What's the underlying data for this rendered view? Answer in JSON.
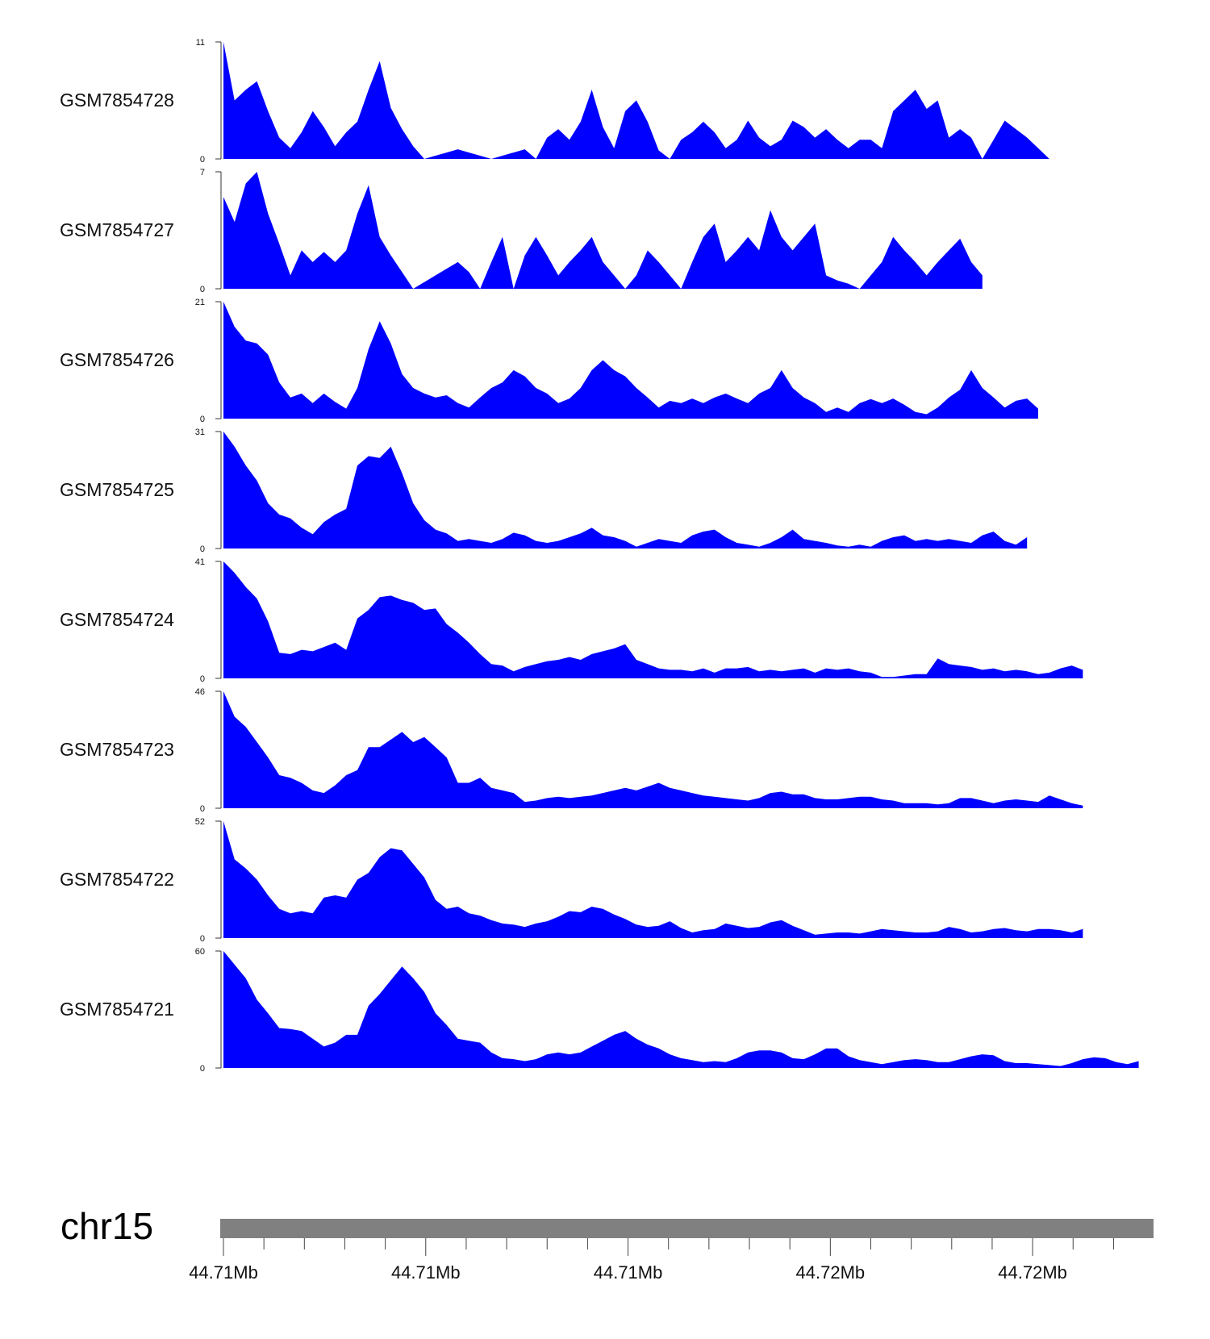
{
  "chart_data": {
    "type": "area",
    "title": "",
    "xlabel": "",
    "ylabel": "",
    "colors": {
      "fill": "#0000ff",
      "axis": "#333333",
      "ideogram": "#808080"
    },
    "chromosome": "chr15",
    "x": [
      0,
      1.2,
      2.4,
      3.6,
      4.8,
      6,
      7.2,
      8.4,
      9.6,
      10.8,
      12,
      13.2,
      14.4,
      15.6,
      16.8,
      18,
      19.2,
      20.4,
      21.6,
      22.8,
      24,
      25.2,
      26.4,
      27.6,
      28.8,
      30,
      31.2,
      32.4,
      33.6,
      34.8,
      36,
      37.2,
      38.4,
      39.6,
      40.8,
      42,
      43.2,
      44.4,
      45.6,
      46.8,
      48,
      49.2,
      50.4,
      51.6,
      52.8,
      54,
      55.2,
      56.4,
      57.6,
      58.8,
      60,
      61.2,
      62.4,
      63.6,
      64.8,
      66,
      67.2,
      68.4,
      69.6,
      70.8,
      72,
      73.2,
      74.4,
      75.6,
      76.8,
      78,
      79.2,
      80.4,
      81.6,
      82.8,
      84,
      85.2,
      86.4,
      87.6,
      88.8,
      90,
      91.2,
      92.4,
      93.6,
      94.8,
      96,
      97.2,
      98.4,
      99.6
    ],
    "xlim": [
      0,
      100
    ],
    "series": [
      {
        "name": "GSM7854728",
        "ymax": "11",
        "ymin": "0",
        "ylim": [
          0,
          11
        ],
        "values": [
          11,
          5.5,
          6.5,
          7.3,
          4.5,
          2,
          1,
          2.5,
          4.5,
          3,
          1.2,
          2.5,
          3.5,
          6.5,
          9.2,
          4.8,
          2.8,
          1.2,
          0,
          0.3,
          0.6,
          0.9,
          0.6,
          0.3,
          0,
          0.3,
          0.6,
          0.9,
          0,
          2,
          2.8,
          1.8,
          3.5,
          6.5,
          3,
          1,
          4.5,
          5.5,
          3.5,
          0.8,
          0,
          1.8,
          2.5,
          3.5,
          2.5,
          1,
          1.8,
          3.6,
          2,
          1.2,
          1.8,
          3.6,
          3,
          2,
          2.8,
          1.8,
          1,
          1.8,
          1.8,
          1,
          4.5,
          5.5,
          6.5,
          4.7,
          5.5,
          2,
          2.8,
          2,
          0,
          1.8,
          3.6,
          2.8,
          2,
          1,
          0,
          null,
          null,
          null,
          null,
          null,
          null,
          null,
          null,
          null
        ]
      },
      {
        "name": "GSM7854727",
        "ymax": "7",
        "ymin": "0",
        "ylim": [
          0,
          7
        ],
        "values": [
          5.5,
          4,
          6.3,
          7,
          4.5,
          2.7,
          0.8,
          2.3,
          1.6,
          2.2,
          1.6,
          2.3,
          4.5,
          6.2,
          3.1,
          2,
          1,
          0,
          0.4,
          0.8,
          1.2,
          1.6,
          1,
          0,
          1.6,
          3.1,
          0,
          2,
          3.1,
          2,
          0.8,
          1.6,
          2.3,
          3.1,
          1.6,
          0.8,
          0,
          0.8,
          2.3,
          1.6,
          0.8,
          0,
          1.6,
          3.1,
          3.9,
          1.6,
          2.3,
          3.1,
          2.3,
          4.7,
          3.1,
          2.3,
          3.1,
          3.9,
          0.8,
          0.5,
          0.3,
          0,
          0.8,
          1.6,
          3.1,
          2.3,
          1.6,
          0.8,
          1.6,
          2.3,
          3,
          1.6,
          0.8,
          null,
          null,
          null,
          null,
          null,
          null,
          null,
          null,
          null,
          null,
          null,
          null,
          null,
          null,
          null
        ]
      },
      {
        "name": "GSM7854726",
        "ymax": "21",
        "ymin": "0",
        "ylim": [
          0,
          21
        ],
        "values": [
          21,
          16.5,
          14,
          13.5,
          11.5,
          6.5,
          3.8,
          4.5,
          2.8,
          4.5,
          3,
          1.8,
          5.5,
          12.5,
          17.5,
          13.5,
          8,
          5.5,
          4.5,
          3.8,
          4.2,
          2.8,
          2,
          3.8,
          5.5,
          6.5,
          8.7,
          7.6,
          5.5,
          4.5,
          2.8,
          3.6,
          5.5,
          8.7,
          10.5,
          8.7,
          7.6,
          5.5,
          3.8,
          2,
          3.2,
          2.8,
          3.6,
          2.8,
          3.8,
          4.5,
          3.6,
          2.8,
          4.5,
          5.5,
          8.7,
          5.5,
          3.8,
          2.8,
          1.2,
          2,
          1.2,
          2.8,
          3.5,
          2.8,
          3.6,
          2.5,
          1.2,
          0.8,
          2,
          3.8,
          5.2,
          8.7,
          5.5,
          3.8,
          2,
          3.2,
          3.6,
          1.8,
          null,
          null,
          null,
          null,
          null,
          null,
          null,
          null,
          null,
          null
        ]
      },
      {
        "name": "GSM7854725",
        "ymax": "31",
        "ymin": "0",
        "ylim": [
          0,
          31
        ],
        "values": [
          31,
          27,
          22,
          18,
          12,
          9,
          8,
          5.5,
          3.8,
          7,
          9,
          10.5,
          22,
          24.5,
          24,
          27,
          20,
          12,
          7.5,
          5,
          4,
          2,
          2.5,
          2,
          1.5,
          2.5,
          4.2,
          3.5,
          2,
          1.5,
          2,
          3,
          4,
          5.5,
          3.5,
          3,
          2,
          0.5,
          1.5,
          2.5,
          2,
          1.5,
          3.5,
          4.5,
          5,
          3,
          1.5,
          1,
          0.5,
          1.5,
          3,
          5,
          2.5,
          2,
          1.5,
          0.8,
          0.5,
          1,
          0.5,
          2,
          3,
          3.5,
          2,
          2.5,
          2,
          2.5,
          2,
          1.5,
          3.5,
          4.5,
          2,
          1,
          3,
          null,
          null,
          null,
          null,
          null,
          null,
          null,
          null,
          null,
          null,
          null
        ]
      },
      {
        "name": "GSM7854724",
        "ymax": "41",
        "ymin": "0",
        "ylim": [
          0,
          41
        ],
        "values": [
          41,
          37,
          32,
          28,
          20,
          9,
          8.5,
          10,
          9.5,
          11,
          12.5,
          10,
          21,
          24,
          28.5,
          29,
          27.5,
          26.5,
          24,
          24.5,
          19,
          16,
          12.5,
          8.5,
          5,
          4.5,
          2.5,
          4,
          5,
          6,
          6.5,
          7.5,
          6.5,
          8.5,
          9.5,
          10.5,
          12,
          6.5,
          5,
          3.5,
          3,
          3,
          2.5,
          3.5,
          2,
          3.5,
          3.5,
          4,
          2.5,
          3,
          2.5,
          3,
          3.5,
          2,
          3.5,
          3,
          3.5,
          2.5,
          2,
          0.5,
          0.5,
          1,
          1.5,
          1.5,
          7,
          5,
          4.5,
          4,
          3,
          3.5,
          2.5,
          3,
          2.5,
          1.5,
          2,
          3.5,
          4.5,
          3,
          null,
          null,
          null,
          null,
          null,
          null
        ]
      },
      {
        "name": "GSM7854723",
        "ymax": "46",
        "ymin": "0",
        "ylim": [
          0,
          46
        ],
        "values": [
          46,
          36,
          32,
          26,
          20,
          13,
          12,
          10,
          7,
          6,
          9,
          13,
          15,
          24,
          24,
          27,
          30,
          26,
          28,
          24,
          20,
          10,
          10,
          12,
          8,
          7,
          6,
          2.5,
          3,
          4,
          4.5,
          4,
          4.5,
          5,
          6,
          7,
          8,
          7,
          8.5,
          10,
          8,
          7,
          6,
          5,
          4.5,
          4,
          3.5,
          3,
          4,
          6,
          6.5,
          5.5,
          5.5,
          4,
          3.5,
          3.5,
          4,
          4.5,
          4.5,
          3.5,
          3,
          2,
          2,
          2,
          1.5,
          2,
          4,
          4,
          3,
          2,
          3,
          3.5,
          3,
          2.5,
          5,
          3.5,
          2,
          1,
          null,
          null,
          null,
          null,
          null,
          null
        ]
      },
      {
        "name": "GSM7854722",
        "ymax": "52",
        "ymin": "0",
        "ylim": [
          0,
          52
        ],
        "values": [
          52,
          35,
          31,
          26,
          19,
          13,
          11,
          12,
          11,
          18,
          19,
          18,
          26,
          29,
          36,
          40,
          39,
          33,
          27,
          17,
          13,
          14,
          11,
          10,
          8,
          6.5,
          6,
          5,
          6.5,
          7.5,
          9.5,
          12,
          11.5,
          14,
          13,
          10.5,
          8.5,
          6,
          5,
          5.5,
          7.5,
          4.5,
          2.5,
          3.5,
          4,
          6.5,
          5.5,
          4.5,
          5,
          7,
          8,
          5.5,
          3.5,
          1.5,
          2,
          2.5,
          2.5,
          2,
          3,
          4,
          3.5,
          3,
          2.5,
          2.5,
          3,
          5,
          4,
          2.5,
          3,
          4,
          4.5,
          3.5,
          3,
          4,
          4,
          3.5,
          2.5,
          4,
          null,
          null,
          null,
          null,
          null,
          null
        ]
      },
      {
        "name": "GSM7854721",
        "ymax": "60",
        "ymin": "0",
        "ylim": [
          0,
          60
        ],
        "values": [
          60,
          53,
          46,
          35,
          28,
          20.5,
          20,
          19,
          15,
          11,
          13,
          17,
          17,
          32,
          38,
          45,
          52,
          46,
          39,
          28,
          22,
          15,
          14,
          13,
          8,
          5,
          4.5,
          3.5,
          4.5,
          7,
          8,
          7,
          8,
          11,
          14,
          17,
          19,
          15,
          12,
          10,
          7,
          5,
          4,
          3,
          3.5,
          3,
          5,
          8,
          9,
          9,
          8,
          5,
          4.5,
          7,
          10,
          10,
          6,
          4,
          3,
          2,
          3,
          4,
          4.5,
          4,
          3,
          3,
          4.5,
          6,
          7,
          6.5,
          3.5,
          2.5,
          2.5,
          2,
          1.5,
          1,
          2.5,
          4.5,
          5.5,
          5,
          3,
          2,
          3.5,
          null
        ]
      }
    ],
    "ideogram": {
      "label": "chr15",
      "ticks": [
        0,
        4.35,
        8.7,
        13.05,
        17.4,
        21.75,
        26.1,
        30.45,
        34.8,
        39.15,
        43.5,
        47.85,
        52.2,
        56.55,
        60.9,
        65.25,
        69.6,
        73.95,
        78.3,
        82.65,
        87,
        91.35,
        95.7
      ],
      "tick_labels": [
        {
          "at": 0,
          "label": "44.71Mb"
        },
        {
          "at": 21.75,
          "label": "44.71Mb"
        },
        {
          "at": 43.5,
          "label": "44.71Mb"
        },
        {
          "at": 65.25,
          "label": "44.72Mb"
        },
        {
          "at": 87,
          "label": "44.72Mb"
        }
      ]
    }
  }
}
